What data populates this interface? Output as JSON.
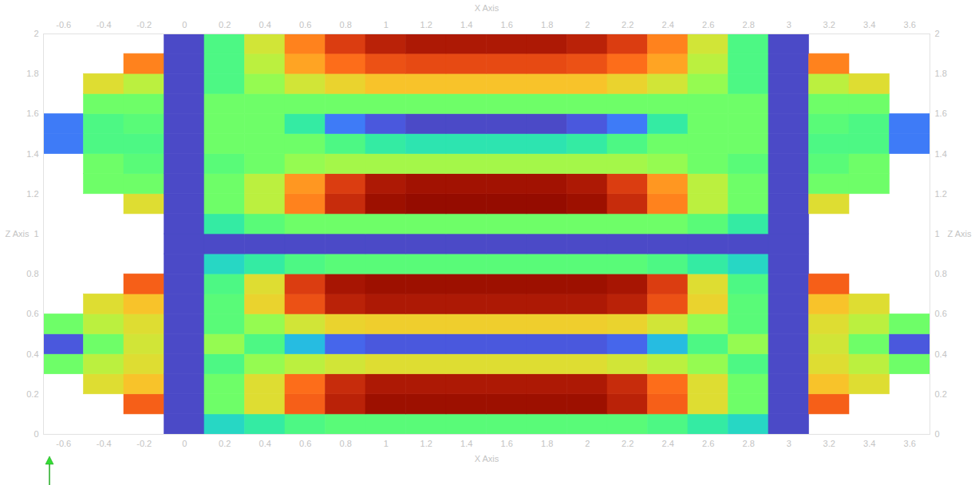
{
  "chart_data": {
    "type": "heatmap",
    "x_label": "X Axis",
    "y_label": "Z Axis",
    "xlim": [
      -0.7,
      3.7
    ],
    "ylim": [
      0,
      2
    ],
    "xticks": [
      -0.6,
      -0.4,
      -0.2,
      0,
      0.2,
      0.4,
      0.6,
      0.8,
      1,
      1.2,
      1.4,
      1.6,
      1.8,
      2,
      2.2,
      2.4,
      2.6,
      2.8,
      3,
      3.2,
      3.4,
      3.6
    ],
    "yticks": [
      0,
      0.2,
      0.4,
      0.6,
      0.8,
      1,
      1.2,
      1.4,
      1.6,
      1.8,
      2
    ],
    "color": "turbo",
    "color_range": [
      0,
      1
    ],
    "cells": {
      "x": [
        -0.6,
        -0.4,
        -0.2,
        0,
        0.2,
        0.4,
        0.6,
        0.8,
        1,
        1.2,
        1.4,
        1.6,
        1.8,
        2,
        2.2,
        2.4,
        2.6,
        2.8,
        3,
        3.2,
        3.4,
        3.6
      ],
      "z": [
        0.05,
        0.15,
        0.25,
        0.35,
        0.45,
        0.55,
        0.65,
        0.75,
        0.85,
        0.95,
        1.05,
        1.15,
        1.25,
        1.35,
        1.45,
        1.55,
        1.65,
        1.75,
        1.85,
        1.95
      ],
      "values": [
        [
          null,
          null,
          null,
          0.08,
          0.3,
          0.35,
          0.4,
          0.42,
          0.42,
          0.42,
          0.42,
          0.42,
          0.42,
          0.42,
          0.42,
          0.4,
          0.35,
          0.3,
          0.08,
          null,
          null,
          null
        ],
        [
          null,
          null,
          0.8,
          0.08,
          0.45,
          0.6,
          0.8,
          0.9,
          0.95,
          0.95,
          0.95,
          0.95,
          0.95,
          0.95,
          0.9,
          0.8,
          0.6,
          0.45,
          0.08,
          0.8,
          null,
          null
        ],
        [
          null,
          0.6,
          0.65,
          0.08,
          0.45,
          0.6,
          0.78,
          0.88,
          0.92,
          0.92,
          0.92,
          0.92,
          0.92,
          0.92,
          0.88,
          0.78,
          0.6,
          0.45,
          0.08,
          0.65,
          0.6,
          null
        ],
        [
          0.45,
          0.55,
          0.6,
          0.08,
          0.4,
          0.5,
          0.55,
          0.58,
          0.6,
          0.6,
          0.6,
          0.6,
          0.6,
          0.6,
          0.58,
          0.55,
          0.5,
          0.4,
          0.08,
          0.6,
          0.55,
          0.45
        ],
        [
          0.1,
          0.45,
          0.58,
          0.08,
          0.5,
          0.4,
          0.25,
          0.12,
          0.1,
          0.1,
          0.1,
          0.1,
          0.1,
          0.1,
          0.12,
          0.25,
          0.4,
          0.5,
          0.08,
          0.58,
          0.45,
          0.1
        ],
        [
          0.45,
          0.55,
          0.6,
          0.08,
          0.42,
          0.5,
          0.58,
          0.62,
          0.63,
          0.63,
          0.63,
          0.63,
          0.63,
          0.63,
          0.62,
          0.58,
          0.5,
          0.42,
          0.08,
          0.6,
          0.55,
          0.45
        ],
        [
          null,
          0.6,
          0.65,
          0.08,
          0.42,
          0.62,
          0.82,
          0.9,
          0.92,
          0.92,
          0.92,
          0.92,
          0.92,
          0.92,
          0.9,
          0.82,
          0.62,
          0.42,
          0.08,
          0.65,
          0.6,
          null
        ],
        [
          null,
          null,
          0.8,
          0.08,
          0.4,
          0.6,
          0.85,
          0.93,
          0.95,
          0.95,
          0.95,
          0.95,
          0.95,
          0.95,
          0.93,
          0.85,
          0.6,
          0.4,
          0.08,
          0.8,
          null,
          null
        ],
        [
          null,
          null,
          null,
          0.08,
          0.3,
          0.35,
          0.4,
          0.42,
          0.42,
          0.42,
          0.42,
          0.42,
          0.42,
          0.42,
          0.42,
          0.4,
          0.35,
          0.3,
          0.08,
          null,
          null,
          null
        ],
        [
          null,
          null,
          null,
          0.08,
          0.08,
          0.08,
          0.08,
          0.08,
          0.08,
          0.08,
          0.08,
          0.08,
          0.08,
          0.08,
          0.08,
          0.08,
          0.08,
          0.08,
          0.08,
          null,
          null,
          null
        ],
        [
          null,
          null,
          null,
          0.08,
          0.35,
          0.42,
          0.45,
          0.45,
          0.45,
          0.45,
          0.45,
          0.45,
          0.45,
          0.45,
          0.45,
          0.45,
          0.42,
          0.35,
          0.08,
          null,
          null,
          null
        ],
        [
          null,
          null,
          0.6,
          0.08,
          0.45,
          0.55,
          0.75,
          0.88,
          0.95,
          0.97,
          0.97,
          0.97,
          0.97,
          0.95,
          0.88,
          0.75,
          0.55,
          0.45,
          0.08,
          0.6,
          null,
          null
        ],
        [
          null,
          0.45,
          0.45,
          0.08,
          0.45,
          0.55,
          0.72,
          0.85,
          0.92,
          0.94,
          0.94,
          0.94,
          0.94,
          0.92,
          0.85,
          0.72,
          0.55,
          0.45,
          0.08,
          0.45,
          0.45,
          null
        ],
        [
          null,
          0.45,
          0.42,
          0.08,
          0.42,
          0.45,
          0.5,
          0.52,
          0.52,
          0.52,
          0.52,
          0.52,
          0.52,
          0.52,
          0.52,
          0.5,
          0.45,
          0.42,
          0.08,
          0.42,
          0.45,
          null
        ],
        [
          0.15,
          0.4,
          0.4,
          0.08,
          0.45,
          0.45,
          0.45,
          0.4,
          0.35,
          0.33,
          0.33,
          0.33,
          0.33,
          0.35,
          0.4,
          0.45,
          0.45,
          0.45,
          0.08,
          0.4,
          0.4,
          0.15
        ],
        [
          0.15,
          0.4,
          0.42,
          0.08,
          0.45,
          0.45,
          0.35,
          0.15,
          0.1,
          0.08,
          0.08,
          0.08,
          0.08,
          0.1,
          0.15,
          0.35,
          0.45,
          0.45,
          0.08,
          0.42,
          0.4,
          0.15
        ],
        [
          null,
          0.45,
          0.45,
          0.08,
          0.45,
          0.45,
          0.45,
          0.45,
          0.45,
          0.45,
          0.45,
          0.45,
          0.45,
          0.45,
          0.45,
          0.45,
          0.45,
          0.45,
          0.08,
          0.45,
          0.45,
          null
        ],
        [
          null,
          0.6,
          0.55,
          0.08,
          0.4,
          0.5,
          0.58,
          0.62,
          0.65,
          0.65,
          0.65,
          0.65,
          0.65,
          0.65,
          0.62,
          0.58,
          0.5,
          0.4,
          0.08,
          0.55,
          0.6,
          null
        ],
        [
          null,
          null,
          0.75,
          0.08,
          0.4,
          0.55,
          0.7,
          0.78,
          0.82,
          0.83,
          0.83,
          0.83,
          0.83,
          0.82,
          0.78,
          0.7,
          0.55,
          0.4,
          0.08,
          0.75,
          null,
          null
        ],
        [
          null,
          null,
          null,
          0.08,
          0.4,
          0.58,
          0.75,
          0.85,
          0.9,
          0.92,
          0.92,
          0.92,
          0.92,
          0.9,
          0.85,
          0.75,
          0.58,
          0.4,
          0.08,
          null,
          null,
          null
        ]
      ]
    }
  }
}
